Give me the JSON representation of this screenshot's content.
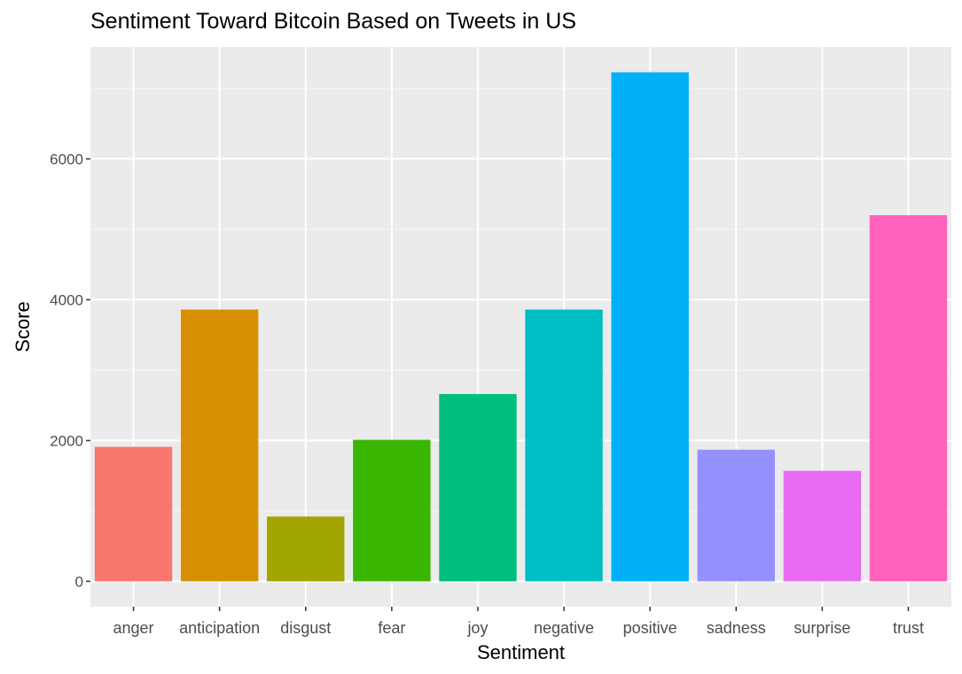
{
  "chart_data": {
    "type": "bar",
    "title": "Sentiment Toward Bitcoin Based on Tweets in US",
    "xlabel": "Sentiment",
    "ylabel": "Score",
    "categories": [
      "anger",
      "anticipation",
      "disgust",
      "fear",
      "joy",
      "negative",
      "positive",
      "sadness",
      "surprise",
      "trust"
    ],
    "values": [
      1910,
      3860,
      920,
      2010,
      2660,
      3860,
      7230,
      1870,
      1570,
      5200
    ],
    "colors": [
      "#F8766D",
      "#D89000",
      "#A3A500",
      "#39B600",
      "#00BF7D",
      "#00BFC4",
      "#00B0F6",
      "#9590FF",
      "#E76BF3",
      "#FF62BC"
    ],
    "yticks": [
      0,
      2000,
      4000,
      6000
    ],
    "ylim": [
      -360,
      7590
    ],
    "grid": true,
    "legend": "none"
  }
}
